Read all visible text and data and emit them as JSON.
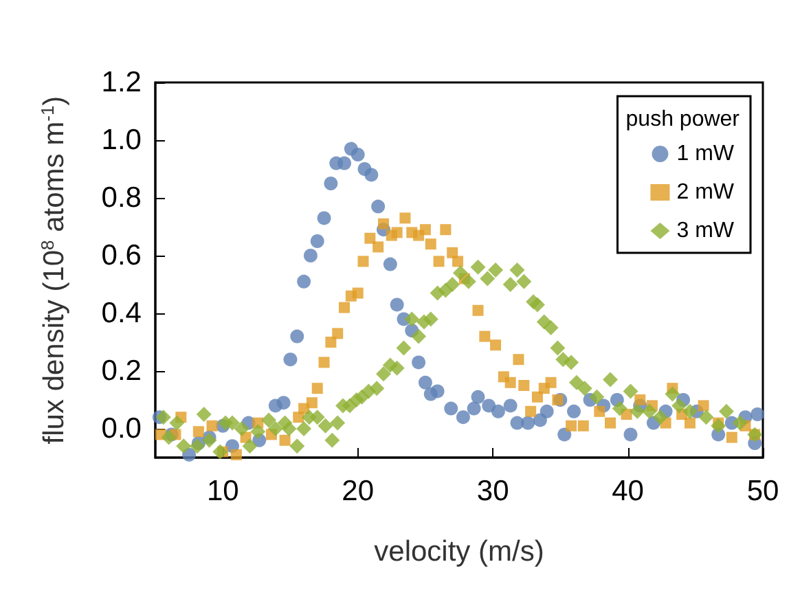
{
  "chart_data": {
    "type": "scatter",
    "xlabel": "velocity (m/s)",
    "ylabel": "flux density (10$^{8}$ atoms m$^{-1}$)",
    "legend_title": "push power",
    "xlim": [
      5,
      50
    ],
    "xticks": [
      10,
      20,
      30,
      40,
      50
    ],
    "ylim": [
      -0.1,
      1.2
    ],
    "yticks": [
      {
        "value": 0,
        "label": "0.0"
      },
      0.2,
      0.4,
      0.6,
      0.8,
      {
        "value": 1,
        "label": "1.0"
      },
      1.2
    ],
    "grid": false,
    "legend": "top right",
    "series": [
      {
        "name": "1 mW",
        "color": "#5e81b5",
        "marker": "circle",
        "x": [
          5.3,
          6.2,
          7.5,
          8.2,
          9.0,
          10.0,
          10.7,
          11.9,
          12.7,
          13.9,
          14.5,
          15.0,
          15.5,
          16.0,
          16.5,
          17.0,
          17.5,
          18.0,
          18.4,
          19.0,
          19.5,
          20.0,
          20.5,
          21.0,
          21.5,
          21.9,
          22.4,
          22.9,
          23.4,
          24.0,
          24.5,
          25.0,
          25.4,
          25.9,
          26.9,
          27.8,
          28.6,
          28.9,
          29.7,
          30.4,
          31.3,
          31.8,
          32.6,
          33.5,
          34.0,
          35.0,
          35.3,
          36.0,
          37.2,
          38.2,
          39.2,
          40.2,
          40.9,
          41.9,
          42.8,
          44.1,
          45.1,
          46.7,
          47.7,
          48.7,
          49.4,
          49.6
        ],
        "values": [
          0.04,
          -0.02,
          -0.09,
          -0.05,
          -0.03,
          0.01,
          -0.06,
          0.02,
          -0.04,
          0.08,
          0.09,
          0.24,
          0.32,
          0.51,
          0.6,
          0.65,
          0.73,
          0.85,
          0.92,
          0.92,
          0.97,
          0.95,
          0.9,
          0.88,
          0.77,
          0.69,
          0.57,
          0.43,
          0.38,
          0.34,
          0.23,
          0.16,
          0.12,
          0.13,
          0.07,
          0.04,
          0.07,
          0.11,
          0.08,
          0.06,
          0.08,
          0.02,
          0.02,
          0.03,
          0.06,
          0.1,
          -0.02,
          0.06,
          0.1,
          0.08,
          0.1,
          -0.02,
          0.08,
          0.02,
          0.06,
          0.1,
          0.06,
          -0.02,
          0.02,
          0.04,
          -0.05,
          0.05
        ]
      },
      {
        "name": "2 mW",
        "color": "#e19c24",
        "marker": "square",
        "x": [
          5.4,
          6.5,
          6.9,
          8.2,
          9.2,
          10.0,
          11.0,
          11.7,
          12.6,
          13.6,
          14.6,
          15.6,
          16.0,
          16.6,
          17.0,
          17.5,
          18.0,
          18.5,
          19.0,
          19.5,
          20.0,
          20.4,
          20.9,
          21.5,
          21.9,
          22.5,
          22.9,
          23.5,
          24.0,
          24.5,
          25.0,
          25.4,
          26.0,
          26.5,
          27.0,
          27.4,
          27.9,
          28.9,
          29.4,
          30.2,
          30.8,
          31.3,
          31.9,
          32.3,
          32.8,
          33.3,
          33.8,
          34.3,
          34.8,
          35.8,
          36.7,
          37.9,
          38.7,
          39.9,
          40.9,
          41.8,
          42.8,
          43.3,
          44.0,
          44.6,
          45.6,
          46.7,
          47.7,
          48.7,
          49.4
        ],
        "values": [
          -0.02,
          -0.02,
          0.04,
          -0.01,
          0.01,
          -0.08,
          -0.09,
          -0.03,
          0.02,
          -0.02,
          -0.04,
          0.04,
          0.07,
          0.09,
          0.14,
          0.23,
          0.3,
          0.33,
          0.42,
          0.46,
          0.47,
          0.58,
          0.66,
          0.63,
          0.71,
          0.67,
          0.68,
          0.73,
          0.68,
          0.67,
          0.69,
          0.64,
          0.58,
          0.69,
          0.61,
          0.58,
          0.52,
          0.41,
          0.32,
          0.29,
          0.18,
          0.16,
          0.24,
          0.15,
          0.06,
          0.11,
          0.14,
          0.16,
          0.1,
          0.01,
          0.01,
          0.06,
          0.02,
          0.05,
          0.1,
          0.08,
          0.02,
          0.14,
          0.05,
          0.02,
          0.08,
          0.02,
          -0.03,
          0.01,
          -0.02
        ]
      },
      {
        "name": "3 mW",
        "color": "#8fb032",
        "marker": "diamond",
        "x": [
          5.6,
          6.0,
          6.6,
          7.1,
          8.1,
          8.6,
          9.0,
          9.8,
          10.2,
          10.7,
          11.4,
          12.0,
          12.6,
          13.4,
          13.9,
          14.6,
          14.9,
          15.5,
          16.0,
          16.4,
          17.0,
          17.6,
          18.1,
          18.5,
          18.9,
          19.4,
          19.9,
          20.3,
          20.8,
          21.4,
          21.9,
          22.4,
          22.9,
          23.4,
          24.0,
          24.5,
          24.9,
          25.4,
          25.9,
          26.5,
          27.0,
          27.6,
          28.2,
          28.9,
          29.6,
          30.2,
          31.3,
          31.8,
          32.3,
          33.0,
          33.3,
          33.8,
          34.3,
          34.8,
          35.2,
          35.8,
          36.2,
          36.8,
          37.7,
          38.7,
          39.4,
          40.2,
          40.7,
          41.6,
          42.4,
          43.3,
          43.8,
          44.6,
          45.8,
          46.7,
          47.3,
          48.3,
          49.4
        ],
        "values": [
          0.04,
          -0.03,
          0.02,
          -0.06,
          -0.06,
          0.05,
          -0.04,
          -0.08,
          0.02,
          0.02,
          0.0,
          -0.06,
          -0.01,
          0.03,
          0.0,
          0.02,
          0.0,
          -0.06,
          0.0,
          0.04,
          0.04,
          0.01,
          -0.04,
          0.02,
          0.08,
          0.08,
          0.1,
          0.11,
          0.13,
          0.14,
          0.19,
          0.22,
          0.21,
          0.28,
          0.38,
          0.32,
          0.37,
          0.38,
          0.47,
          0.48,
          0.5,
          0.54,
          0.51,
          0.56,
          0.52,
          0.55,
          0.5,
          0.55,
          0.51,
          0.44,
          0.43,
          0.37,
          0.35,
          0.28,
          0.24,
          0.23,
          0.16,
          0.14,
          0.11,
          0.17,
          0.07,
          0.13,
          0.06,
          0.06,
          0.04,
          0.12,
          0.08,
          0.06,
          0.04,
          0.01,
          0.06,
          0.02,
          -0.02
        ]
      }
    ]
  }
}
